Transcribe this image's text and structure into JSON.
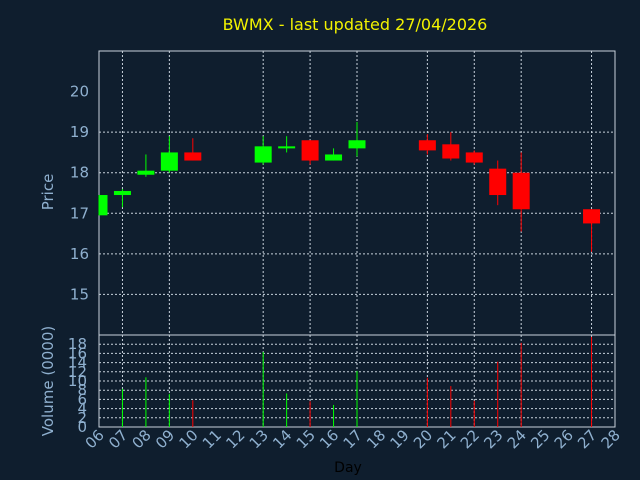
{
  "chart_data": {
    "type": "candlestick",
    "title": "BWMX - last updated 27/04/2026",
    "xlabel": "Day",
    "price_panel": {
      "ylabel": "Price",
      "yticks": [
        15,
        16,
        17,
        18,
        19,
        20
      ],
      "ylim": [
        14.0,
        21.0
      ],
      "grid": true
    },
    "volume_panel": {
      "ylabel": "Volume (0000)",
      "yticks": [
        0,
        2,
        4,
        6,
        8,
        10,
        12,
        14,
        16,
        18
      ],
      "ylim": [
        0,
        20
      ],
      "grid": true
    },
    "days": [
      "06",
      "07",
      "08",
      "09",
      "10",
      "11",
      "12",
      "13",
      "14",
      "15",
      "16",
      "17",
      "18",
      "19",
      "20",
      "21",
      "22",
      "23",
      "24",
      "25",
      "26",
      "27",
      "28"
    ],
    "candles": [
      {
        "day": "06",
        "open": 16.95,
        "close": 17.45,
        "high": 17.45,
        "low": 16.95,
        "volume": 0
      },
      {
        "day": "07",
        "open": 17.45,
        "close": 17.55,
        "high": 17.6,
        "low": 17.15,
        "volume": 8.3
      },
      {
        "day": "08",
        "open": 17.95,
        "close": 18.05,
        "high": 18.45,
        "low": 17.9,
        "volume": 10.8
      },
      {
        "day": "09",
        "open": 18.05,
        "close": 18.5,
        "high": 18.9,
        "low": 18.0,
        "volume": 7.2
      },
      {
        "day": "10",
        "open": 18.5,
        "close": 18.3,
        "high": 18.85,
        "low": 18.3,
        "volume": 5.8
      },
      {
        "day": "13",
        "open": 18.25,
        "close": 18.65,
        "high": 18.9,
        "low": 18.2,
        "volume": 16.3
      },
      {
        "day": "14",
        "open": 18.6,
        "close": 18.65,
        "high": 18.9,
        "low": 18.5,
        "volume": 7.3
      },
      {
        "day": "15",
        "open": 18.8,
        "close": 18.3,
        "high": 18.8,
        "low": 18.2,
        "volume": 5.6
      },
      {
        "day": "16",
        "open": 18.3,
        "close": 18.45,
        "high": 18.6,
        "low": 18.3,
        "volume": 4.8
      },
      {
        "day": "17",
        "open": 18.6,
        "close": 18.8,
        "high": 19.25,
        "low": 18.4,
        "volume": 12.2
      },
      {
        "day": "20",
        "open": 18.8,
        "close": 18.55,
        "high": 18.95,
        "low": 18.45,
        "volume": 10.7
      },
      {
        "day": "21",
        "open": 18.7,
        "close": 18.35,
        "high": 19.0,
        "low": 18.3,
        "volume": 8.9
      },
      {
        "day": "22",
        "open": 18.5,
        "close": 18.25,
        "high": 18.55,
        "low": 18.2,
        "volume": 5.7
      },
      {
        "day": "23",
        "open": 18.1,
        "close": 17.45,
        "high": 18.3,
        "low": 17.2,
        "volume": 14.2
      },
      {
        "day": "24",
        "open": 18.0,
        "close": 17.1,
        "high": 18.5,
        "low": 16.55,
        "volume": 18.3
      },
      {
        "day": "27",
        "open": 17.1,
        "close": 16.75,
        "high": 17.1,
        "low": 16.05,
        "volume": 19.6
      }
    ],
    "colors": {
      "up": "#00ff00",
      "down": "#ff0000",
      "background": "#0f1e2e",
      "panel": "#0f1e2e",
      "grid": "#c8d2dc",
      "axis": "#8fb0cf",
      "title": "#f2f200"
    }
  }
}
